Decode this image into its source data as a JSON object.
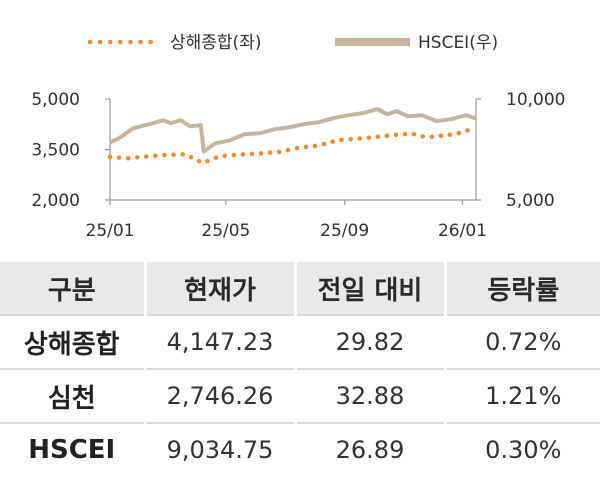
{
  "chart_data": {
    "type": "line",
    "xlabel": "",
    "ylabel_left": "",
    "ylabel_right": "",
    "x_ticks": [
      "25/01",
      "25/05",
      "25/09",
      "26/01"
    ],
    "x_range": [
      "2025-01-01",
      "2026-01-15"
    ],
    "y_left_ticks": [
      "5,000",
      "3,500",
      "2,000"
    ],
    "y_left_range": [
      2000,
      5000
    ],
    "y_right_ticks": [
      "10,000",
      "5,000"
    ],
    "y_right_range": [
      5000,
      10000
    ],
    "grid": false,
    "legend_position": "top",
    "series": [
      {
        "name": "상해종합(좌)",
        "axis": "left",
        "color": "#f08a2c",
        "style": "dotted",
        "x": [
          "2025-01-01",
          "2025-01-20",
          "2025-02-10",
          "2025-03-01",
          "2025-03-20",
          "2025-04-07",
          "2025-04-25",
          "2025-05-15",
          "2025-06-05",
          "2025-06-25",
          "2025-07-15",
          "2025-08-05",
          "2025-08-25",
          "2025-09-15",
          "2025-10-05",
          "2025-10-25",
          "2025-11-10",
          "2025-11-25",
          "2025-12-10",
          "2025-12-25",
          "2026-01-15"
        ],
        "values": [
          3280,
          3240,
          3300,
          3340,
          3360,
          3100,
          3300,
          3350,
          3380,
          3430,
          3550,
          3620,
          3780,
          3820,
          3880,
          3940,
          3970,
          3860,
          3910,
          3960,
          4147
        ]
      },
      {
        "name": "HSCEI(우)",
        "axis": "right",
        "color": "#c5b49a",
        "style": "solid",
        "x": [
          "2025-01-01",
          "2025-01-10",
          "2025-01-25",
          "2025-02-10",
          "2025-02-25",
          "2025-03-05",
          "2025-03-15",
          "2025-03-25",
          "2025-04-05",
          "2025-04-08",
          "2025-04-20",
          "2025-05-05",
          "2025-05-20",
          "2025-06-05",
          "2025-06-20",
          "2025-07-05",
          "2025-07-20",
          "2025-08-05",
          "2025-08-20",
          "2025-09-05",
          "2025-09-20",
          "2025-10-05",
          "2025-10-15",
          "2025-10-25",
          "2025-11-05",
          "2025-11-20",
          "2025-12-05",
          "2025-12-20",
          "2026-01-05",
          "2026-01-15"
        ],
        "values": [
          7850,
          8050,
          8550,
          8750,
          8950,
          8800,
          8950,
          8650,
          8700,
          7400,
          7800,
          7950,
          8250,
          8300,
          8500,
          8600,
          8750,
          8850,
          9050,
          9200,
          9300,
          9500,
          9250,
          9400,
          9150,
          9200,
          8900,
          9000,
          9200,
          9035
        ]
      }
    ]
  },
  "table": {
    "headers": [
      "구분",
      "현재가",
      "전일 대비",
      "등락률"
    ],
    "rows": [
      {
        "name": "상해종합",
        "price": "4,147.23",
        "change": "29.82",
        "rate": "0.72%"
      },
      {
        "name": "심천",
        "price": "2,746.26",
        "change": "32.88",
        "rate": "1.21%"
      },
      {
        "name": "HSCEI",
        "price": "9,034.75",
        "change": "26.89",
        "rate": "0.30%"
      }
    ]
  }
}
